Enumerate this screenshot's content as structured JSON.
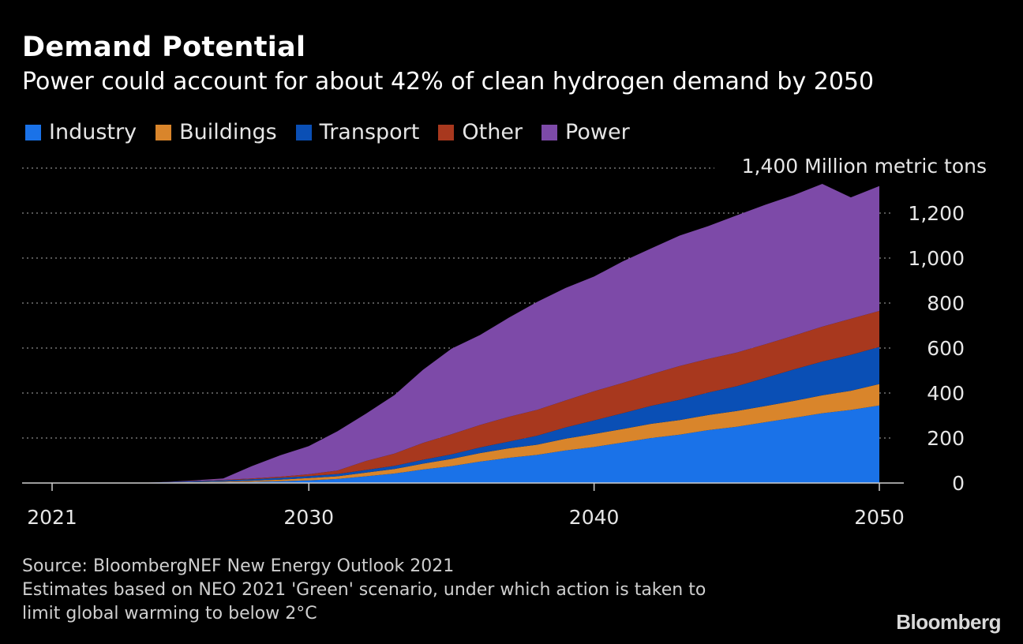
{
  "title": "Demand Potential",
  "subtitle": "Power could account for about 42% of clean hydrogen demand by 2050",
  "chart_data": {
    "type": "area",
    "stacked": true,
    "x": [
      2021,
      2022,
      2023,
      2024,
      2025,
      2026,
      2027,
      2028,
      2029,
      2030,
      2031,
      2032,
      2033,
      2034,
      2035,
      2036,
      2037,
      2038,
      2039,
      2040,
      2041,
      2042,
      2043,
      2044,
      2045,
      2046,
      2047,
      2048,
      2049,
      2050
    ],
    "series": [
      {
        "name": "Industry",
        "color": "#1a72e8",
        "values": [
          0,
          0,
          0,
          0,
          1,
          2,
          3,
          5,
          8,
          12,
          18,
          30,
          42,
          60,
          75,
          95,
          112,
          125,
          145,
          160,
          180,
          200,
          215,
          235,
          250,
          270,
          290,
          310,
          325,
          345
        ]
      },
      {
        "name": "Buildings",
        "color": "#d9852b",
        "values": [
          0,
          0,
          0,
          0,
          1,
          2,
          3,
          5,
          7,
          10,
          12,
          16,
          20,
          26,
          32,
          38,
          42,
          45,
          52,
          58,
          60,
          63,
          65,
          67,
          70,
          72,
          75,
          80,
          85,
          95
        ]
      },
      {
        "name": "Transport",
        "color": "#0a4fb5",
        "values": [
          0,
          0,
          0,
          0,
          2,
          4,
          6,
          7,
          8,
          9,
          10,
          12,
          14,
          17,
          20,
          25,
          30,
          40,
          50,
          60,
          70,
          80,
          90,
          100,
          110,
          125,
          140,
          150,
          160,
          165
        ]
      },
      {
        "name": "Other",
        "color": "#a8381e",
        "values": [
          0,
          0,
          0,
          0,
          0,
          1,
          2,
          3,
          5,
          8,
          15,
          40,
          55,
          75,
          90,
          100,
          110,
          115,
          120,
          130,
          135,
          140,
          150,
          150,
          150,
          150,
          150,
          155,
          160,
          160
        ]
      },
      {
        "name": "Power",
        "color": "#7d4aa8",
        "values": [
          0,
          0,
          0,
          0,
          1,
          3,
          6,
          55,
          95,
          125,
          175,
          210,
          260,
          325,
          380,
          400,
          440,
          480,
          500,
          510,
          540,
          560,
          580,
          590,
          610,
          620,
          625,
          635,
          540,
          555
        ]
      }
    ],
    "title": "Demand Potential",
    "subtitle": "Power could account for about 42% of clean hydrogen demand by 2050",
    "ylabel": "Million metric tons",
    "ylim": [
      0,
      1400
    ],
    "yticks": [
      0,
      200,
      400,
      600,
      800,
      1000,
      1200,
      1400
    ],
    "ytick_labels": [
      "0",
      "200",
      "400",
      "600",
      "800",
      "1,000",
      "1,200",
      "1,400"
    ],
    "top_tick_label": "1,400 Million metric tons",
    "xticks": [
      2021,
      2030,
      2040,
      2050
    ],
    "xtick_labels": [
      "2021",
      "2030",
      "2040",
      "2050"
    ],
    "grid": true,
    "legend_position": "top-left"
  },
  "footer": {
    "source": "Source: BloombergNEF New Energy Outlook 2021",
    "note_line1": "Estimates based on NEO 2021 'Green' scenario, under which action is taken to",
    "note_line2": "limit global warming to below 2°C"
  },
  "brand": "Bloomberg"
}
